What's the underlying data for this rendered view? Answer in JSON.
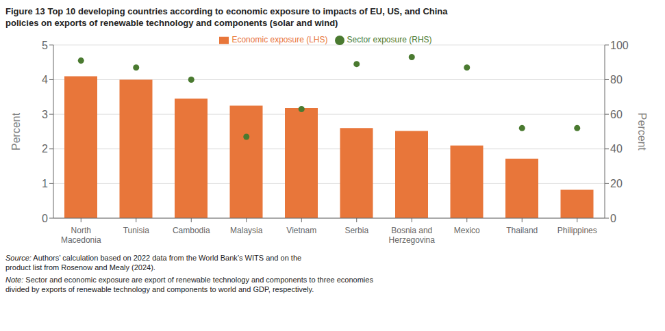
{
  "chart_data": {
    "type": "bar",
    "title": "Figure 13 Top 10 developing countries according to economic exposure to impacts of EU, US, and China\npolicies on exports of renewable technology and components (solar and wind)",
    "categories": [
      "North\nMacedonia",
      "Tunisia",
      "Cambodia",
      "Malaysia",
      "Vietnam",
      "Serbia",
      "Bosnia and\nHerzegovina",
      "Mexico",
      "Thailand",
      "Philippines"
    ],
    "series": [
      {
        "name": "Economic exposure (LHS)",
        "type": "bar",
        "color": "#E8763A",
        "values": [
          4.1,
          4.0,
          3.45,
          3.25,
          3.18,
          2.6,
          2.52,
          2.1,
          1.72,
          0.82
        ]
      },
      {
        "name": "Sector exposure (RHS)",
        "type": "scatter",
        "color": "#4A7A30",
        "marker": "circle",
        "axis": "y2",
        "values": [
          91,
          87,
          80,
          47,
          63,
          89,
          93,
          87,
          52,
          52
        ]
      }
    ],
    "ylabel": "Percent",
    "y2label": "Percent",
    "ylim": [
      0,
      5
    ],
    "yticks": [
      0,
      1,
      2,
      3,
      4,
      5
    ],
    "y2lim": [
      0,
      100
    ],
    "y2ticks": [
      0,
      20,
      40,
      60,
      80,
      100
    ],
    "grid": true,
    "legend": "top",
    "annotations": [
      "Source: Authors’ calculation based on 2022 data from the World Bank’s WITS and on the\nproduct list from Rosenow and Mealy (2024).",
      "Note: Sector and economic exposure are export of renewable technology and components to three economies\ndivided by exports of renewable technology and components to world and GDP, respectively."
    ]
  }
}
